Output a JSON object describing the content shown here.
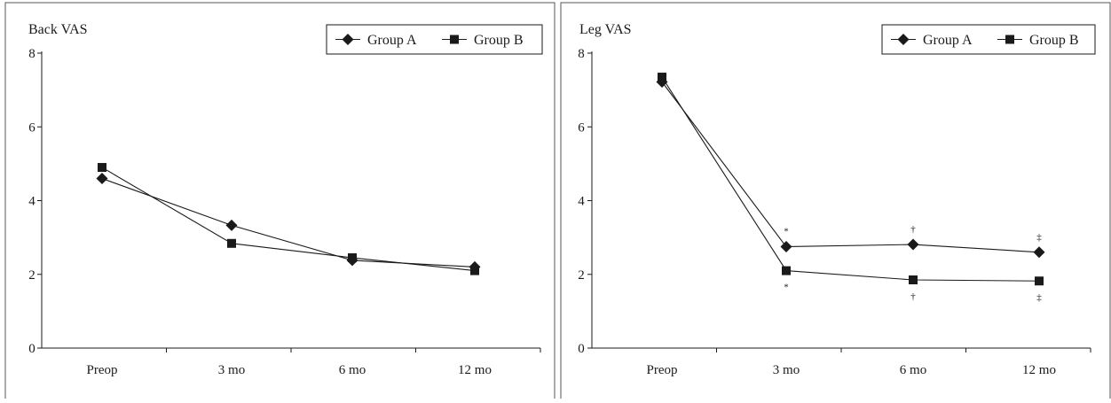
{
  "chart_data": [
    {
      "type": "line",
      "title": "Back VAS",
      "categories": [
        "Preop",
        "3 mo",
        "6 mo",
        "12 mo"
      ],
      "ylim": [
        0,
        8
      ],
      "yticks": [
        "0",
        "2",
        "4",
        "6",
        "8"
      ],
      "legend": "top-right",
      "grid": false,
      "series": [
        {
          "name": "Group A",
          "marker": "diamond",
          "values": [
            4.6,
            3.33,
            2.38,
            2.2
          ]
        },
        {
          "name": "Group B",
          "marker": "square",
          "values": [
            4.9,
            2.84,
            2.45,
            2.1
          ]
        }
      ],
      "annotations": []
    },
    {
      "type": "line",
      "title": "Leg VAS",
      "categories": [
        "Preop",
        "3 mo",
        "6 mo",
        "12 mo"
      ],
      "ylim": [
        0,
        8
      ],
      "yticks": [
        "0",
        "2",
        "4",
        "6",
        "8"
      ],
      "legend": "top-right",
      "grid": false,
      "series": [
        {
          "name": "Group A",
          "marker": "diamond",
          "values": [
            7.22,
            2.75,
            2.81,
            2.6
          ]
        },
        {
          "name": "Group B",
          "marker": "square",
          "values": [
            7.35,
            2.1,
            1.85,
            1.82
          ]
        }
      ],
      "annotations": [
        {
          "category": "3 mo",
          "text": "*",
          "series": "Group A",
          "position": "above"
        },
        {
          "category": "3 mo",
          "text": "*",
          "series": "Group B",
          "position": "below"
        },
        {
          "category": "6 mo",
          "text": "†",
          "series": "Group A",
          "position": "above"
        },
        {
          "category": "6 mo",
          "text": "†",
          "series": "Group B",
          "position": "below"
        },
        {
          "category": "12 mo",
          "text": "‡",
          "series": "Group A",
          "position": "above"
        },
        {
          "category": "12 mo",
          "text": "‡",
          "series": "Group B",
          "position": "below"
        }
      ]
    }
  ],
  "colors": {
    "line": "#1a1a1a",
    "frame": "#555555",
    "background": "#ffffff"
  }
}
